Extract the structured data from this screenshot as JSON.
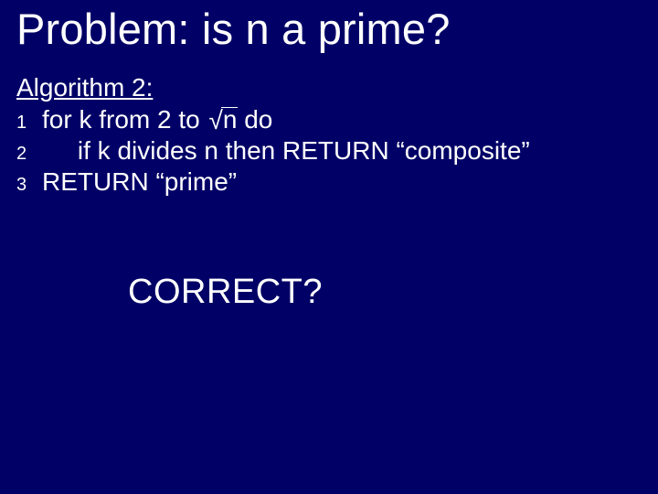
{
  "background_color": "#000066",
  "text_color": "#ffffff",
  "title": "Problem: is n a prime?",
  "title_fontsize": 47,
  "body_fontsize": 28,
  "linenum_fontsize": 20,
  "correct_fontsize": 38,
  "algorithm": {
    "header": "Algorithm 2:",
    "lines": [
      {
        "num": "1",
        "pre": "for k from 2 to ",
        "sqrt_arg": "n",
        "post": " do"
      },
      {
        "num": "2",
        "text": "     if k divides n then RETURN “composite”"
      },
      {
        "num": "3",
        "text": "RETURN “prime”"
      }
    ]
  },
  "prompt": "CORRECT?"
}
